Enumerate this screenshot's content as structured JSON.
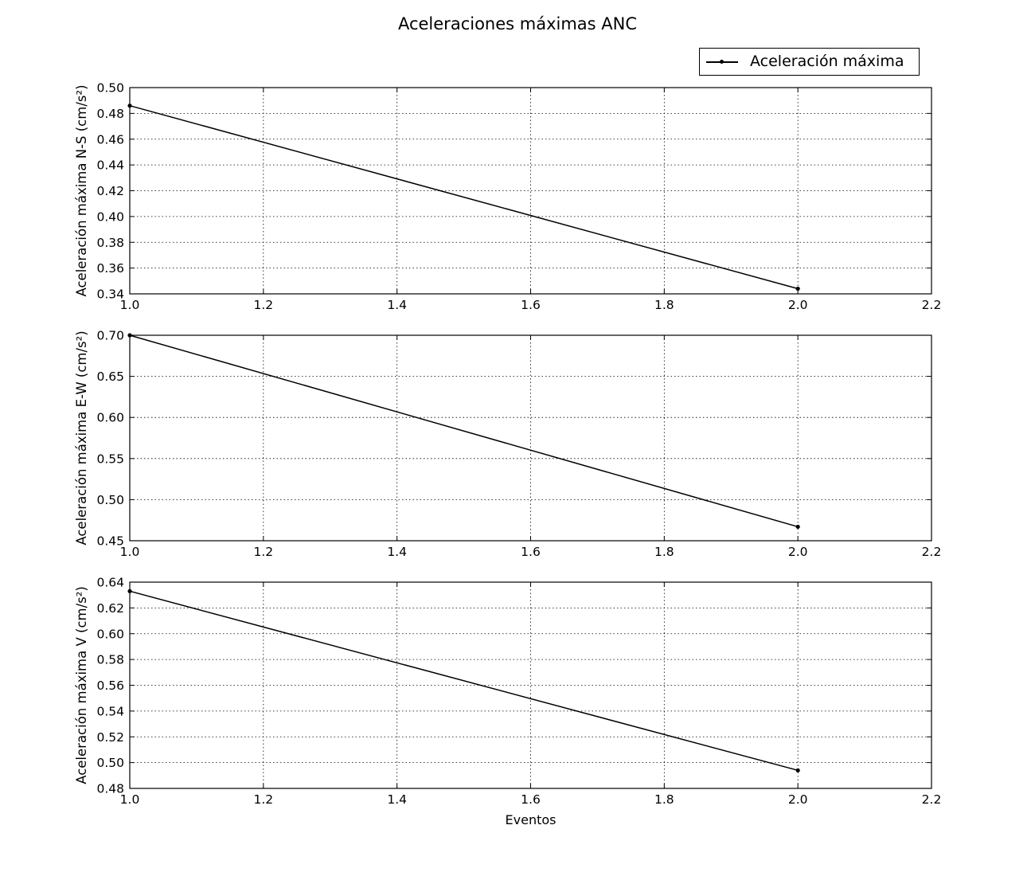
{
  "figure": {
    "title": "Aceleraciones máximas ANC",
    "legend_label": "Aceleración máxima"
  },
  "chart_data": [
    {
      "type": "line",
      "title": "",
      "xlabel": "",
      "ylabel": "Aceleración máxima N-S (cm/s²)",
      "xlim": [
        1.0,
        2.2
      ],
      "ylim": [
        0.34,
        0.5
      ],
      "xticks": [
        "1.0",
        "1.2",
        "1.4",
        "1.6",
        "1.8",
        "2.0",
        "2.2"
      ],
      "yticks": [
        "0.34",
        "0.36",
        "0.38",
        "0.40",
        "0.42",
        "0.44",
        "0.46",
        "0.48",
        "0.50"
      ],
      "grid": true,
      "series": [
        {
          "name": "Aceleración máxima",
          "color": "#000000",
          "marker": "dot",
          "x": [
            1.0,
            2.0
          ],
          "y": [
            0.486,
            0.344
          ]
        }
      ]
    },
    {
      "type": "line",
      "title": "",
      "xlabel": "",
      "ylabel": "Aceleración máxima E-W (cm/s²)",
      "xlim": [
        1.0,
        2.2
      ],
      "ylim": [
        0.45,
        0.7
      ],
      "xticks": [
        "1.0",
        "1.2",
        "1.4",
        "1.6",
        "1.8",
        "2.0",
        "2.2"
      ],
      "yticks": [
        "0.45",
        "0.50",
        "0.55",
        "0.60",
        "0.65",
        "0.70"
      ],
      "grid": true,
      "series": [
        {
          "name": "Aceleración máxima",
          "color": "#000000",
          "marker": "dot",
          "x": [
            1.0,
            2.0
          ],
          "y": [
            0.7,
            0.467
          ]
        }
      ]
    },
    {
      "type": "line",
      "title": "",
      "xlabel": "Eventos",
      "ylabel": "Aceleración máxima V (cm/s²)",
      "xlim": [
        1.0,
        2.2
      ],
      "ylim": [
        0.48,
        0.64
      ],
      "xticks": [
        "1.0",
        "1.2",
        "1.4",
        "1.6",
        "1.8",
        "2.0",
        "2.2"
      ],
      "yticks": [
        "0.48",
        "0.50",
        "0.52",
        "0.54",
        "0.56",
        "0.58",
        "0.60",
        "0.62",
        "0.64"
      ],
      "grid": true,
      "series": [
        {
          "name": "Aceleración máxima",
          "color": "#000000",
          "marker": "dot",
          "x": [
            1.0,
            2.0
          ],
          "y": [
            0.633,
            0.494
          ]
        }
      ]
    }
  ]
}
